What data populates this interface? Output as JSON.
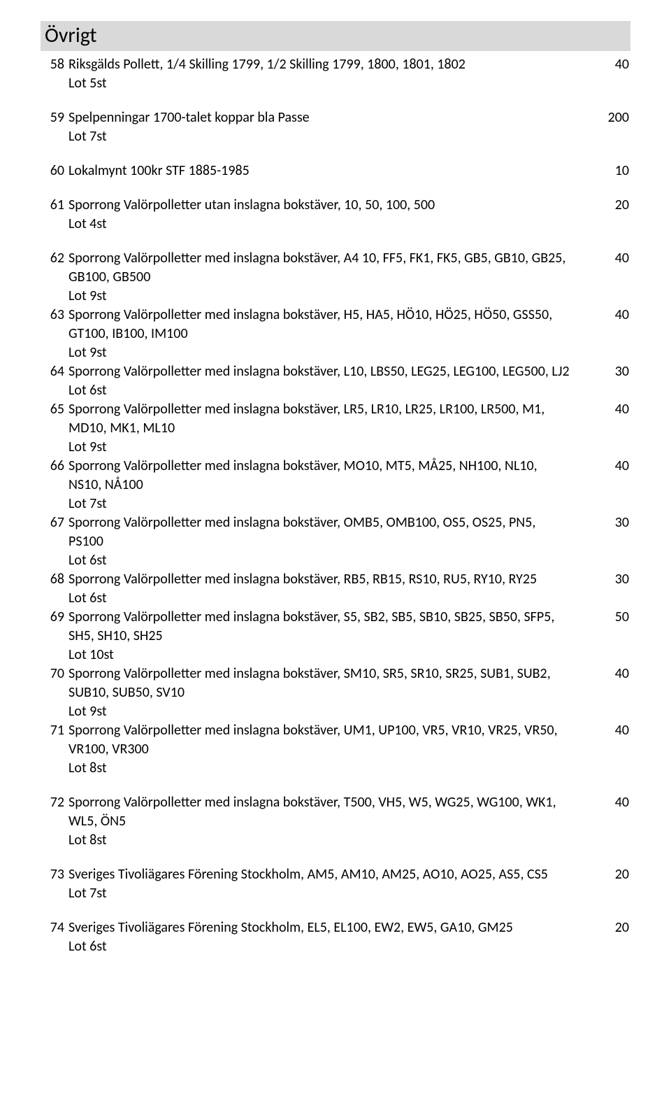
{
  "section_header": "Övrigt",
  "items": [
    {
      "num": "58",
      "title": "Riksgälds Pollett, 1/4 Skilling 1799, 1/2 Skilling 1799, 1800, 1801, 1802",
      "value": "40",
      "lot": "Lot 5st",
      "gap_after": true
    },
    {
      "num": "59",
      "title": "Spelpenningar 1700-talet koppar bla Passe",
      "value": "200",
      "lot": "Lot 7st",
      "gap_after": true
    },
    {
      "num": "60",
      "title": "Lokalmynt 100kr STF 1885-1985",
      "value": "10",
      "lot": "",
      "gap_after": true
    },
    {
      "num": "61",
      "title": "Sporrong Valörpolletter utan inslagna bokstäver, 10, 50, 100, 500",
      "value": "20",
      "lot": "Lot 4st",
      "gap_after": true
    },
    {
      "num": "62",
      "title": "Sporrong Valörpolletter med inslagna bokstäver, A4 10, FF5, FK1, FK5, GB5, GB10, GB25, GB100, GB500",
      "value": "40",
      "lot": "Lot 9st",
      "gap_after": false
    },
    {
      "num": "63",
      "title": "Sporrong Valörpolletter med inslagna bokstäver, H5, HA5, HÖ10, HÖ25, HÖ50, GSS50, GT100, IB100, IM100",
      "value": "40",
      "lot": "Lot 9st",
      "gap_after": false
    },
    {
      "num": "64",
      "title": "Sporrong Valörpolletter med inslagna bokstäver, L10, LBS50, LEG25, LEG100, LEG500, LJ2",
      "value": "30",
      "lot": "Lot 6st",
      "gap_after": false
    },
    {
      "num": "65",
      "title": "Sporrong Valörpolletter med inslagna bokstäver, LR5, LR10, LR25, LR100, LR500, M1, MD10, MK1, ML10",
      "value": "40",
      "lot": "Lot 9st",
      "gap_after": false
    },
    {
      "num": "66",
      "title": "Sporrong Valörpolletter med inslagna bokstäver, MO10, MT5, MÅ25, NH100, NL10, NS10, NÅ100",
      "value": "40",
      "lot": "Lot 7st",
      "gap_after": false
    },
    {
      "num": "67",
      "title": "Sporrong Valörpolletter med inslagna bokstäver, OMB5, OMB100, OS5, OS25, PN5, PS100",
      "value": "30",
      "lot": "Lot 6st",
      "gap_after": false
    },
    {
      "num": "68",
      "title": "Sporrong Valörpolletter med inslagna bokstäver, RB5, RB15, RS10, RU5, RY10, RY25",
      "value": "30",
      "lot": "Lot 6st",
      "gap_after": false
    },
    {
      "num": "69",
      "title": "Sporrong Valörpolletter med inslagna bokstäver, S5, SB2, SB5, SB10, SB25, SB50, SFP5, SH5, SH10, SH25",
      "value": "50",
      "lot": "Lot 10st",
      "gap_after": false
    },
    {
      "num": "70",
      "title": "Sporrong Valörpolletter med inslagna bokstäver, SM10, SR5, SR10, SR25, SUB1, SUB2, SUB10, SUB50, SV10",
      "value": "40",
      "lot": "Lot 9st",
      "gap_after": false
    },
    {
      "num": "71",
      "title": "Sporrong Valörpolletter med inslagna bokstäver, UM1, UP100, VR5, VR10, VR25, VR50, VR100, VR300",
      "value": "40",
      "lot": "Lot 8st",
      "gap_after": true
    },
    {
      "num": "72",
      "title": "Sporrong Valörpolletter med inslagna bokstäver, T500, VH5, W5, WG25, WG100, WK1, WL5, ÖN5",
      "value": "40",
      "lot": "Lot 8st",
      "gap_after": true
    },
    {
      "num": "73",
      "title": "Sveriges Tivoliägares Förening Stockholm, AM5, AM10, AM25, AO10, AO25, AS5, CS5",
      "value": "20",
      "lot": "Lot 7st",
      "gap_after": true
    },
    {
      "num": "74",
      "title": "Sveriges Tivoliägares Förening Stockholm, EL5, EL100, EW2, EW5, GA10, GM25",
      "value": "20",
      "lot": "Lot 6st",
      "gap_after": false
    }
  ]
}
